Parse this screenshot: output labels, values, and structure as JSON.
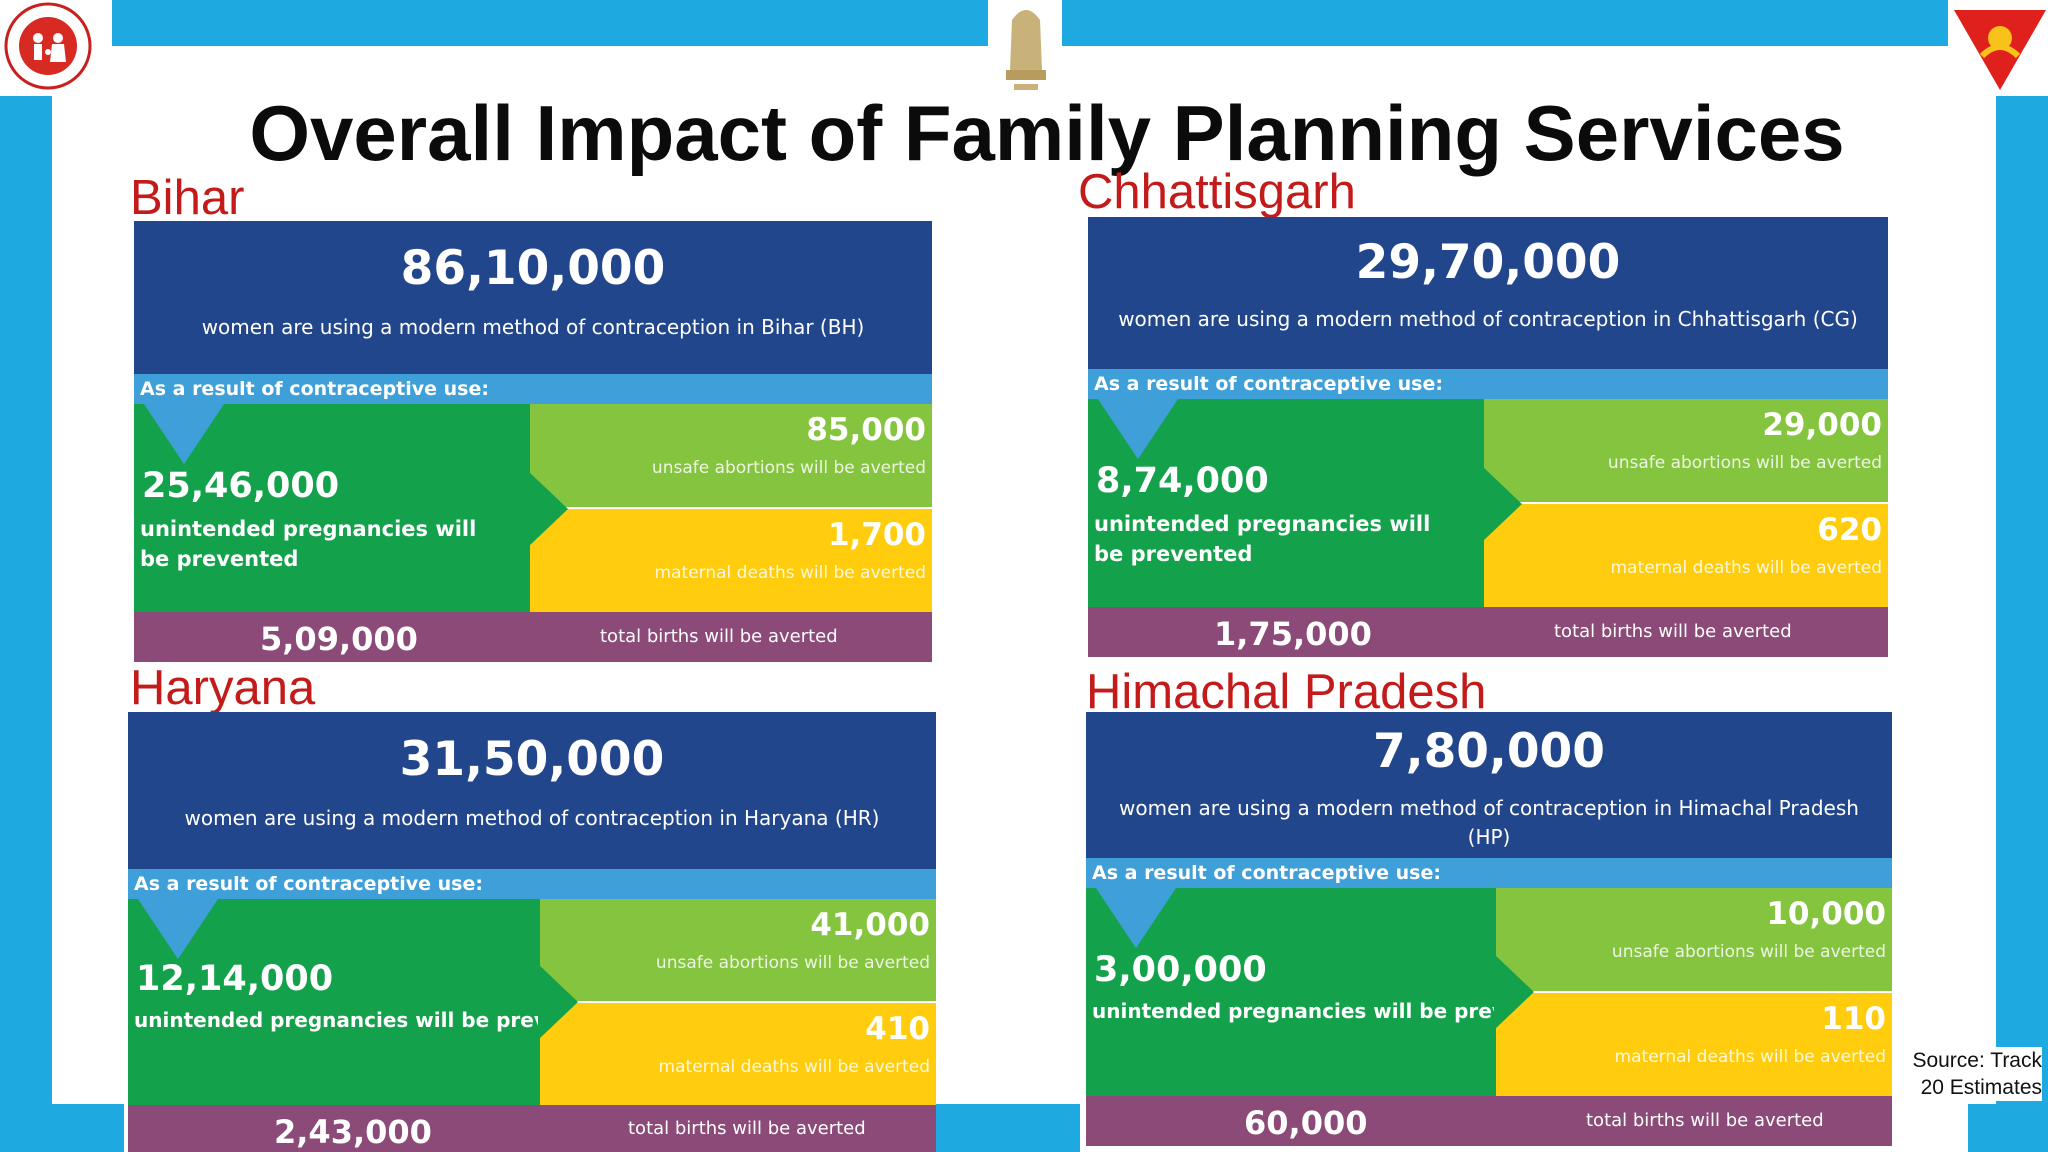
{
  "title": "Overall Impact of Family Planning Services",
  "result_label": "As a result of contraceptive use:",
  "pregnancies_text": "unintended pregnancies will be prevented",
  "abortions_text": "unsafe abortions will be averted",
  "deaths_text": "maternal deaths will be averted",
  "births_text": "total births will be averted",
  "source": {
    "line1": "Source: Track",
    "line2": "20 Estimates"
  },
  "logos": {
    "nhm_text": "NATIONAL HEALTH MISSION",
    "emblem_text": "सत्यमेव जयते"
  },
  "colors": {
    "band": "#1fa9e1",
    "state": "#c31a1a",
    "navy": "#22468b",
    "green": "#13a24b",
    "light_green": "#85c43f",
    "yellow": "#ffcd0e",
    "maroon": "#8b4a77"
  },
  "states": [
    {
      "name": "Bihar",
      "users": "86,10,000",
      "users_text": "women are using a modern method of contraception in Bihar (BH)",
      "pregnancies": "25,46,000",
      "abortions": "85,000",
      "deaths": "1,700",
      "births": "5,09,000"
    },
    {
      "name": "Chhattisgarh",
      "users": "29,70,000",
      "users_text": "women are using a modern method of contraception in Chhattisgarh (CG)",
      "pregnancies": "8,74,000",
      "abortions": "29,000",
      "deaths": "620",
      "births": "1,75,000"
    },
    {
      "name": "Haryana",
      "users": "31,50,000",
      "users_text": "women are using a modern method of contraception in Haryana (HR)",
      "pregnancies": "12,14,000",
      "abortions": "41,000",
      "deaths": "410",
      "births": "2,43,000"
    },
    {
      "name": "Himachal Pradesh",
      "users": "7,80,000",
      "users_text": "women are using a modern method of contraception in Himachal Pradesh (HP)",
      "pregnancies": "3,00,000",
      "abortions": "10,000",
      "deaths": "110",
      "births": "60,000"
    }
  ]
}
